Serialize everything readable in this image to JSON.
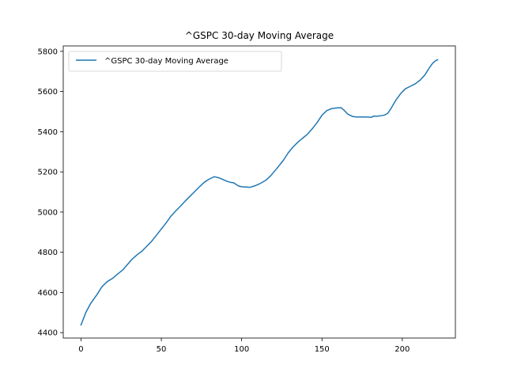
{
  "chart_data": {
    "type": "line",
    "title": "^GSPC 30-day Moving Average",
    "xlabel": "",
    "ylabel": "",
    "xlim": [
      -11.05,
      233.05
    ],
    "ylim": [
      4373,
      5827
    ],
    "xticks": [
      0,
      50,
      100,
      150,
      200
    ],
    "yticks": [
      4400,
      4600,
      4800,
      5000,
      5200,
      5400,
      5600,
      5800
    ],
    "grid": false,
    "legend": "upper-left",
    "series": [
      {
        "name": "^GSPC 30-day Moving Average",
        "color": "#1f77b4",
        "x": [
          0,
          3,
          6,
          10,
          13,
          16,
          20,
          23,
          26,
          29,
          32,
          35,
          38,
          41,
          44,
          47,
          50,
          53,
          56,
          59,
          62,
          65,
          68,
          71,
          74,
          77,
          80,
          83,
          86,
          89,
          91,
          93,
          95,
          98,
          100,
          102,
          105,
          108,
          111,
          115,
          118,
          122,
          126,
          129,
          132,
          135,
          138,
          141,
          144,
          147,
          150,
          153,
          156,
          158,
          160,
          162,
          164,
          166,
          169,
          172,
          175,
          178,
          181,
          182,
          184,
          187,
          189,
          191,
          193,
          196,
          199,
          202,
          205,
          208,
          211,
          214,
          217,
          219,
          221,
          222
        ],
        "values": [
          4438,
          4500,
          4545,
          4590,
          4628,
          4652,
          4672,
          4693,
          4712,
          4740,
          4767,
          4788,
          4806,
          4830,
          4855,
          4885,
          4916,
          4946,
          4980,
          5006,
          5030,
          5056,
          5080,
          5104,
          5128,
          5150,
          5165,
          5176,
          5170,
          5160,
          5153,
          5148,
          5146,
          5130,
          5126,
          5125,
          5123,
          5130,
          5140,
          5158,
          5180,
          5218,
          5258,
          5295,
          5324,
          5348,
          5368,
          5388,
          5415,
          5446,
          5482,
          5505,
          5515,
          5517,
          5519,
          5519,
          5505,
          5488,
          5476,
          5473,
          5474,
          5473,
          5472,
          5478,
          5477,
          5480,
          5483,
          5492,
          5516,
          5557,
          5590,
          5614,
          5626,
          5638,
          5656,
          5682,
          5720,
          5742,
          5755,
          5758
        ]
      }
    ]
  }
}
